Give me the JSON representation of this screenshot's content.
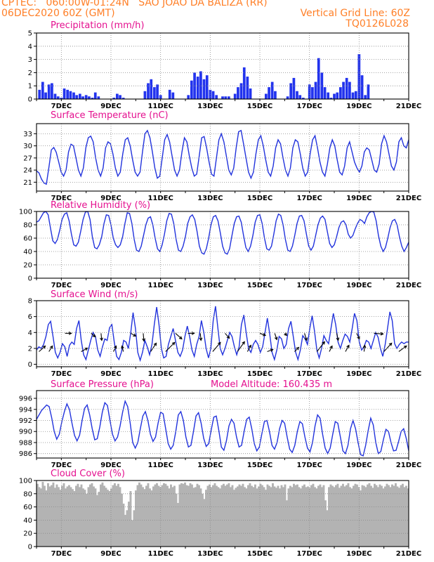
{
  "header": {
    "line1": "CPTEC:   060:00W-01:24N   SAO JOAO DA BALIZA (RR)",
    "line2": "06DEC2020 60Z (GMT)",
    "vgrid": "Vertical Grid Line: 60Z",
    "code": "TQ0126L028"
  },
  "colors": {
    "header": "#ff7f27",
    "title": "#e4108f",
    "line": "#2233dd",
    "bar": "#2233ee",
    "cloud": "#b3b3b3",
    "arrow": "#000000"
  },
  "date_labels": [
    "7DEC",
    "9DEC",
    "11DEC",
    "13DEC",
    "15DEC",
    "17DEC",
    "19DEC",
    "21DEC"
  ],
  "chart_data": [
    {
      "type": "bar",
      "key": "precip",
      "title": "Precipitation (mm/h)",
      "ylim": [
        0,
        5
      ],
      "yticks": [
        0,
        1,
        2,
        3,
        4,
        5
      ],
      "xlim": [
        6.0,
        21.0
      ],
      "x": [
        6.12,
        6.25,
        6.37,
        6.5,
        6.62,
        6.75,
        6.87,
        7.0,
        7.12,
        7.25,
        7.37,
        7.5,
        7.62,
        7.75,
        7.87,
        8.0,
        8.12,
        8.25,
        8.37,
        8.5,
        9.12,
        9.25,
        9.37,
        9.5,
        10.37,
        10.5,
        10.62,
        10.75,
        10.87,
        11.0,
        11.37,
        11.5,
        12.12,
        12.25,
        12.37,
        12.5,
        12.62,
        12.75,
        12.87,
        13.0,
        13.12,
        13.25,
        13.5,
        13.62,
        13.75,
        14.0,
        14.12,
        14.25,
        14.37,
        14.5,
        14.62,
        15.25,
        15.37,
        15.5,
        15.62,
        16.12,
        16.25,
        16.37,
        16.5,
        16.62,
        16.75,
        17.0,
        17.12,
        17.25,
        17.37,
        17.5,
        17.62,
        17.75,
        17.87,
        18.0,
        18.12,
        18.25,
        18.37,
        18.5,
        18.62,
        18.75,
        18.87,
        19.0,
        19.12,
        19.25,
        19.37
      ],
      "values": [
        0.7,
        1.3,
        0.5,
        1.1,
        1.2,
        0.4,
        0.2,
        0.1,
        0.8,
        0.7,
        0.6,
        0.5,
        0.3,
        0.4,
        0.2,
        0.3,
        0.2,
        0.1,
        0.5,
        0.2,
        0.1,
        0.4,
        0.3,
        0.1,
        0.6,
        1.2,
        1.5,
        0.9,
        1.1,
        0.3,
        0.7,
        0.5,
        0.3,
        1.4,
        2.0,
        1.7,
        2.1,
        1.5,
        1.8,
        0.7,
        0.6,
        0.3,
        0.2,
        0.2,
        0.2,
        0.4,
        0.9,
        1.2,
        2.4,
        1.7,
        0.8,
        0.4,
        0.9,
        1.3,
        0.6,
        0.2,
        1.2,
        1.6,
        0.6,
        0.3,
        0.1,
        1.1,
        0.9,
        1.3,
        3.1,
        2.0,
        0.9,
        0.5,
        0.1,
        0.4,
        0.5,
        0.9,
        1.3,
        1.6,
        1.3,
        0.5,
        0.6,
        3.4,
        1.8,
        0.3,
        1.1
      ]
    },
    {
      "type": "line",
      "key": "temp",
      "title": "Surface Temperature (nC)",
      "ylim": [
        18.8,
        35.5
      ],
      "yticks": [
        21,
        24,
        27,
        30,
        33
      ],
      "xlim": [
        6.0,
        21.0
      ],
      "values": [
        23.8,
        23.3,
        21.8,
        20.8,
        20.5,
        24.5,
        29.0,
        29.6,
        28.4,
        26.0,
        23.5,
        22.5,
        24.0,
        28.5,
        30.4,
        30.0,
        27.0,
        24.0,
        22.5,
        24.5,
        29.5,
        32.0,
        32.4,
        31.0,
        27.0,
        24.0,
        22.5,
        24.5,
        29.5,
        31.0,
        30.5,
        28.0,
        24.5,
        22.5,
        23.5,
        28.0,
        31.5,
        32.0,
        30.0,
        26.5,
        23.5,
        22.5,
        23.5,
        28.5,
        33.0,
        33.8,
        32.0,
        28.5,
        24.5,
        22.0,
        22.5,
        27.0,
        31.5,
        32.8,
        31.0,
        27.5,
        24.0,
        22.5,
        24.0,
        28.5,
        32.0,
        31.0,
        27.5,
        24.5,
        22.5,
        23.0,
        27.5,
        32.0,
        32.3,
        29.5,
        26.0,
        23.0,
        22.5,
        27.0,
        31.5,
        33.0,
        31.0,
        27.5,
        24.0,
        22.8,
        24.5,
        29.5,
        33.5,
        33.8,
        30.5,
        27.0,
        23.5,
        22.0,
        23.5,
        28.0,
        31.5,
        32.5,
        30.0,
        26.5,
        23.5,
        22.5,
        25.0,
        29.5,
        31.5,
        30.5,
        27.0,
        24.0,
        22.5,
        24.5,
        29.5,
        31.5,
        31.0,
        28.0,
        24.5,
        22.5,
        23.5,
        28.0,
        31.5,
        32.5,
        29.5,
        26.0,
        23.5,
        22.5,
        25.5,
        29.5,
        31.5,
        30.0,
        26.5,
        23.5,
        22.8,
        25.0,
        29.5,
        31.0,
        28.5,
        26.0,
        24.5,
        23.5,
        25.0,
        28.5,
        29.5,
        29.0,
        26.5,
        24.0,
        23.5,
        25.5,
        30.5,
        32.5,
        31.0,
        28.0,
        25.0,
        24.0,
        26.0,
        31.0,
        32.0,
        30.0,
        29.5,
        31.5
      ]
    },
    {
      "type": "line",
      "key": "rh",
      "title": "Relative Humidity (%)",
      "ylim": [
        0,
        100
      ],
      "yticks": [
        0,
        20,
        40,
        60,
        80,
        100
      ],
      "xlim": [
        6.0,
        21.0
      ],
      "values": [
        84,
        86,
        92,
        98,
        100,
        95,
        75,
        56,
        52,
        58,
        72,
        88,
        96,
        98,
        86,
        66,
        50,
        48,
        54,
        70,
        88,
        99,
        100,
        88,
        62,
        46,
        44,
        50,
        62,
        82,
        95,
        94,
        80,
        60,
        50,
        46,
        50,
        62,
        82,
        98,
        97,
        82,
        58,
        42,
        40,
        48,
        64,
        80,
        90,
        92,
        80,
        60,
        44,
        40,
        50,
        66,
        86,
        97,
        96,
        82,
        58,
        42,
        40,
        48,
        62,
        82,
        92,
        95,
        88,
        70,
        48,
        38,
        36,
        44,
        60,
        80,
        92,
        94,
        86,
        68,
        48,
        38,
        36,
        44,
        64,
        82,
        92,
        93,
        84,
        64,
        46,
        40,
        48,
        64,
        84,
        94,
        95,
        82,
        60,
        44,
        42,
        48,
        66,
        86,
        96,
        94,
        80,
        58,
        42,
        40,
        48,
        64,
        82,
        93,
        94,
        86,
        66,
        48,
        42,
        48,
        64,
        80,
        90,
        93,
        88,
        70,
        52,
        46,
        50,
        62,
        76,
        84,
        86,
        80,
        66,
        60,
        64,
        74,
        82,
        88,
        86,
        82,
        92,
        98,
        100,
        99,
        86,
        64,
        48,
        40,
        46,
        60,
        76,
        86,
        88,
        80,
        62,
        48,
        40,
        46,
        54
      ]
    },
    {
      "type": "line",
      "key": "wind",
      "title": "Surface Wind (m/s)",
      "ylim": [
        -0.3,
        8
      ],
      "yticks": [
        0,
        2,
        4,
        6,
        8
      ],
      "xlim": [
        6.0,
        21.0
      ],
      "values": [
        1.8,
        2.2,
        2.0,
        2.5,
        3.5,
        5.0,
        5.4,
        3.5,
        1.5,
        0.8,
        1.5,
        2.6,
        2.2,
        1.0,
        2.4,
        2.8,
        2.5,
        4.5,
        5.5,
        3.0,
        1.2,
        0.6,
        1.8,
        3.0,
        4.0,
        3.5,
        1.8,
        1.0,
        2.2,
        3.2,
        3.0,
        4.6,
        5.0,
        2.8,
        1.0,
        0.6,
        1.5,
        3.0,
        2.8,
        2.0,
        4.0,
        6.5,
        4.5,
        1.5,
        0.5,
        1.5,
        3.0,
        2.2,
        1.2,
        2.5,
        5.0,
        7.2,
        5.0,
        2.0,
        0.8,
        1.0,
        2.5,
        3.5,
        4.5,
        3.0,
        1.5,
        1.0,
        1.8,
        3.5,
        4.8,
        3.5,
        1.8,
        1.0,
        2.5,
        3.5,
        5.5,
        4.0,
        2.0,
        0.8,
        2.0,
        5.5,
        7.3,
        4.5,
        2.0,
        1.2,
        2.0,
        3.0,
        4.0,
        3.5,
        2.2,
        1.2,
        2.2,
        5.0,
        6.2,
        4.0,
        2.0,
        1.5,
        2.5,
        3.0,
        2.5,
        1.5,
        2.2,
        4.0,
        5.8,
        3.8,
        1.5,
        0.6,
        1.8,
        3.5,
        3.2,
        2.0,
        2.5,
        4.5,
        5.4,
        3.5,
        1.5,
        0.6,
        1.8,
        3.6,
        3.2,
        2.5,
        4.5,
        6.1,
        4.2,
        1.8,
        0.8,
        2.0,
        3.6,
        3.0,
        2.6,
        4.5,
        6.4,
        5.0,
        2.8,
        2.0,
        3.0,
        3.8,
        3.5,
        2.8,
        4.5,
        6.4,
        5.5,
        2.8,
        1.8,
        2.2,
        3.0,
        2.8,
        2.0,
        3.0,
        4.0,
        3.4,
        2.0,
        1.0,
        2.5,
        4.5,
        6.6,
        5.5,
        2.6,
        2.0,
        2.5,
        2.8,
        2.6,
        2.8,
        2.8
      ],
      "arrows": [
        {
          "x": 6.1,
          "dx": 9,
          "dy": -8
        },
        {
          "x": 6.5,
          "dx": 5,
          "dy": -8
        },
        {
          "x": 7.15,
          "dx": 9,
          "dy": 0
        },
        {
          "x": 7.8,
          "dx": 9,
          "dy": -5
        },
        {
          "x": 8.2,
          "dx": 6,
          "dy": 5
        },
        {
          "x": 8.6,
          "dx": 1,
          "dy": 10
        },
        {
          "x": 9.1,
          "dx": 4,
          "dy": -8
        },
        {
          "x": 9.5,
          "dx": -2,
          "dy": -8
        },
        {
          "x": 9.8,
          "dx": 7,
          "dy": 4
        },
        {
          "x": 10.3,
          "dx": 1,
          "dy": 11
        },
        {
          "x": 10.6,
          "dx": 8,
          "dy": -12
        },
        {
          "x": 11.2,
          "dx": 13,
          "dy": -13
        },
        {
          "x": 11.6,
          "dx": 9,
          "dy": 8
        },
        {
          "x": 12.1,
          "dx": 9,
          "dy": 0
        },
        {
          "x": 12.6,
          "dx": 1,
          "dy": 10
        },
        {
          "x": 13.1,
          "dx": 11,
          "dy": -13
        },
        {
          "x": 13.6,
          "dx": 6,
          "dy": 7
        },
        {
          "x": 14.1,
          "dx": 10,
          "dy": -14
        },
        {
          "x": 14.5,
          "dx": 5,
          "dy": -9
        },
        {
          "x": 15.0,
          "dx": 8,
          "dy": 3
        },
        {
          "x": 15.3,
          "dx": 8,
          "dy": -3
        },
        {
          "x": 15.6,
          "dx": 3,
          "dy": 9
        },
        {
          "x": 16.0,
          "dx": 3,
          "dy": 3
        },
        {
          "x": 16.4,
          "dx": 6,
          "dy": -6
        },
        {
          "x": 16.8,
          "dx": 3,
          "dy": 10
        },
        {
          "x": 17.3,
          "dx": 11,
          "dy": -14
        },
        {
          "x": 17.8,
          "dx": 4,
          "dy": -8
        },
        {
          "x": 18.1,
          "dx": 2,
          "dy": 10
        },
        {
          "x": 18.45,
          "dx": 5,
          "dy": -9
        },
        {
          "x": 18.9,
          "dx": 4,
          "dy": 8
        },
        {
          "x": 19.2,
          "dx": 1,
          "dy": -9
        },
        {
          "x": 19.6,
          "dx": 13,
          "dy": 1
        },
        {
          "x": 20.0,
          "dx": 11,
          "dy": -12
        },
        {
          "x": 20.6,
          "dx": 11,
          "dy": -8
        }
      ]
    },
    {
      "type": "line",
      "key": "press",
      "title": "Surface Pressure (hPa)",
      "ylim": [
        985.2,
        997.4
      ],
      "yticks": [
        986,
        988,
        990,
        992,
        994,
        996
      ],
      "xlim": [
        6.0,
        21.0
      ],
      "values": [
        992.2,
        993.0,
        993.8,
        994.3,
        994.8,
        994.5,
        992.5,
        990.0,
        988.6,
        989.5,
        991.8,
        993.6,
        995.0,
        994.0,
        991.5,
        989.3,
        988.3,
        989.3,
        992.0,
        994.2,
        994.8,
        993.0,
        990.5,
        988.5,
        988.7,
        990.8,
        993.5,
        995.2,
        994.7,
        992.0,
        989.5,
        988.3,
        989.0,
        991.0,
        993.5,
        995.5,
        994.5,
        991.5,
        988.0,
        987.0,
        988.0,
        990.5,
        992.8,
        993.6,
        992.0,
        989.5,
        988.2,
        989.0,
        991.5,
        993.5,
        993.2,
        990.5,
        987.8,
        986.8,
        987.5,
        990.0,
        993.0,
        993.6,
        992.0,
        989.0,
        987.2,
        987.5,
        990.0,
        992.8,
        993.4,
        991.5,
        988.8,
        987.3,
        987.8,
        990.3,
        992.6,
        992.8,
        990.2,
        987.2,
        986.6,
        988.3,
        991.0,
        992.2,
        991.5,
        989.0,
        987.2,
        987.5,
        990.0,
        992.2,
        992.6,
        990.5,
        987.8,
        986.5,
        987.2,
        989.6,
        991.8,
        992.0,
        990.0,
        987.5,
        986.8,
        988.0,
        990.5,
        992.0,
        991.5,
        989.0,
        986.8,
        986.2,
        987.5,
        990.0,
        991.8,
        991.4,
        989.0,
        987.0,
        986.3,
        988.0,
        991.0,
        993.0,
        992.4,
        989.5,
        987.0,
        986.0,
        987.0,
        989.5,
        991.8,
        991.5,
        989.0,
        986.5,
        986.0,
        987.5,
        990.5,
        992.0,
        990.5,
        988.0,
        985.8,
        985.6,
        987.5,
        990.2,
        992.4,
        991.2,
        988.0,
        986.0,
        986.4,
        988.5,
        990.4,
        990.0,
        988.0,
        986.5,
        986.6,
        988.2,
        990.0,
        990.5,
        988.8,
        986.5
      ]
    },
    {
      "type": "area",
      "key": "cloud",
      "title": "Cloud Cover (%)",
      "ylim": [
        0,
        100
      ],
      "yticks": [
        0,
        20,
        40,
        60,
        80,
        100
      ],
      "xlim": [
        6.0,
        21.0
      ],
      "values": [
        95,
        90,
        88,
        98,
        92,
        85,
        96,
        91,
        93,
        97,
        89,
        94,
        90,
        86,
        92,
        96,
        88,
        91,
        93,
        90,
        87,
        84,
        92,
        95,
        90,
        94,
        88,
        86,
        80,
        90,
        94,
        96,
        91,
        88,
        78,
        83,
        94,
        97,
        92,
        89,
        86,
        84,
        88,
        93,
        96,
        92,
        95,
        90,
        80,
        65,
        48,
        55,
        68,
        84,
        40,
        55,
        85,
        93,
        97,
        94,
        90,
        87,
        92,
        96,
        88,
        85,
        91,
        94,
        96,
        92,
        90,
        93,
        96,
        95,
        92,
        88,
        94,
        90,
        92,
        80,
        66,
        94,
        96,
        95,
        97,
        93,
        92,
        96,
        94,
        89,
        90,
        95,
        93,
        88,
        80,
        72,
        86,
        92,
        94,
        90,
        93,
        96,
        92,
        90,
        88,
        93,
        95,
        92,
        94,
        96,
        90,
        93,
        86,
        89,
        91,
        94,
        92,
        95,
        90,
        88,
        93,
        96,
        92,
        90,
        94,
        88,
        91,
        95,
        93,
        90,
        86,
        94,
        92,
        90,
        96,
        91,
        89,
        92,
        88,
        93,
        90,
        94,
        70,
        88,
        92,
        90,
        95,
        93,
        94,
        90,
        88,
        92,
        94,
        90,
        91,
        89,
        93,
        95,
        90,
        88,
        92,
        94,
        90,
        93,
        70,
        55,
        90,
        94,
        92,
        90,
        93,
        95,
        89,
        92,
        95,
        91,
        93,
        96,
        90,
        88,
        92,
        95,
        94,
        90,
        85,
        93,
        92,
        90,
        94,
        96,
        92,
        89,
        95,
        93,
        90,
        94,
        92,
        88,
        91,
        95,
        93,
        90,
        94,
        92,
        96,
        91,
        89,
        93,
        95,
        90,
        92,
        88
      ]
    }
  ],
  "wind_panel_title": "Surface Wind (m/s)",
  "pressure_extra": "Model Altitude: 160.435 m"
}
